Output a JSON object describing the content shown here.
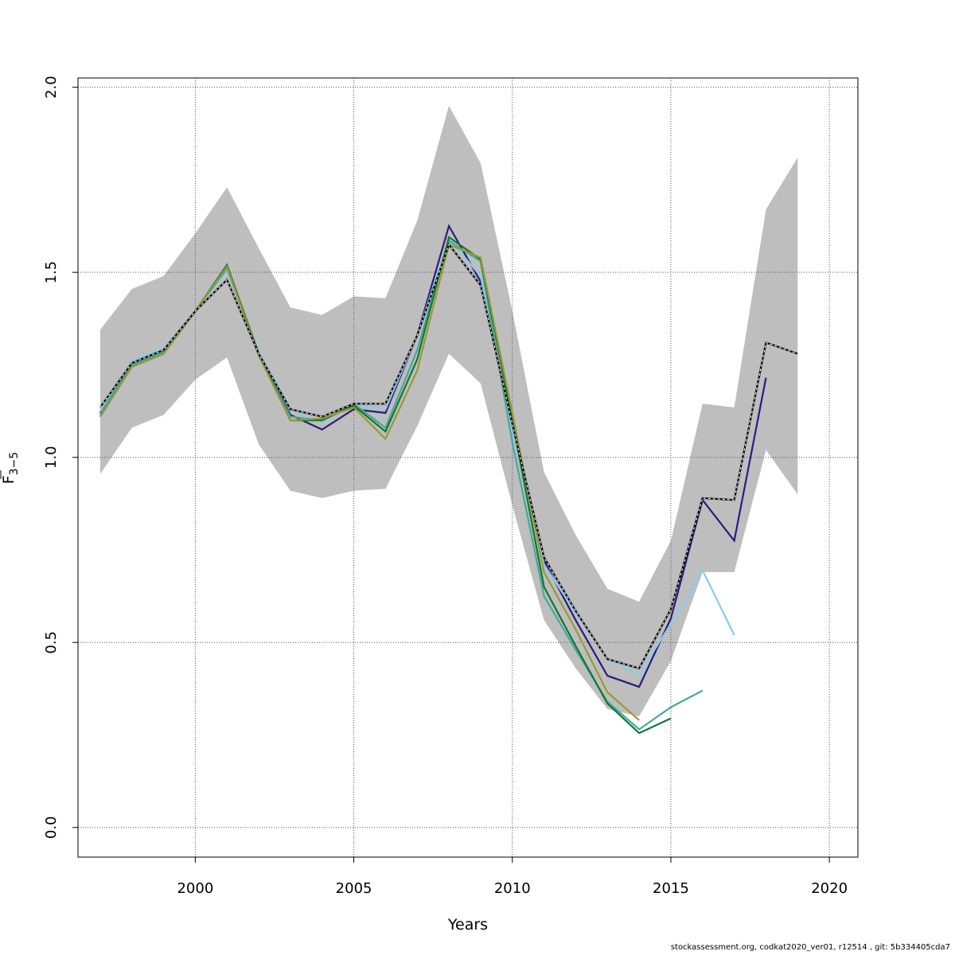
{
  "chart_data": {
    "type": "line",
    "xlabel": "Years",
    "ylabel_main": "F",
    "ylabel_sub": "3−5",
    "xlim": [
      1996.3,
      2020.9
    ],
    "ylim": [
      -0.08,
      2.025
    ],
    "x_ticks": [
      2000,
      2005,
      2010,
      2015,
      2020
    ],
    "y_ticks": [
      0.0,
      0.5,
      1.0,
      1.5,
      2.0
    ],
    "y_tick_labels": [
      "0.0",
      "0.5",
      "1.0",
      "1.5",
      "2.0"
    ],
    "grid": true,
    "confidence_band": {
      "x": [
        1997,
        1998,
        1999,
        2000,
        2001,
        2002,
        2003,
        2004,
        2005,
        2006,
        2007,
        2008,
        2009,
        2010,
        2011,
        2012,
        2013,
        2014,
        2015,
        2016,
        2017,
        2018,
        2019
      ],
      "lower": [
        0.955,
        1.08,
        1.115,
        1.21,
        1.27,
        1.035,
        0.91,
        0.89,
        0.91,
        0.915,
        1.085,
        1.28,
        1.2,
        0.87,
        0.56,
        0.43,
        0.32,
        0.3,
        0.45,
        0.69,
        0.69,
        1.02,
        0.9
      ],
      "upper": [
        1.345,
        1.455,
        1.49,
        1.605,
        1.73,
        1.565,
        1.405,
        1.385,
        1.435,
        1.43,
        1.64,
        1.95,
        1.795,
        1.395,
        0.96,
        0.79,
        0.645,
        0.61,
        0.775,
        1.145,
        1.135,
        1.67,
        1.81
      ],
      "color": "#bebebe"
    },
    "series": [
      {
        "style": "main",
        "color": "#000000",
        "x": [
          1997,
          1998,
          1999,
          2000,
          2001,
          2002,
          2003,
          2004,
          2005,
          2006,
          2007,
          2008,
          2009,
          2010,
          2011,
          2012,
          2013,
          2014,
          2015,
          2016,
          2017,
          2018,
          2019
        ],
        "values": [
          1.135,
          1.255,
          1.29,
          1.395,
          1.48,
          1.28,
          1.13,
          1.11,
          1.145,
          1.145,
          1.33,
          1.575,
          1.465,
          1.09,
          0.73,
          0.585,
          0.455,
          0.43,
          0.59,
          0.89,
          0.885,
          1.31,
          1.28
        ]
      },
      {
        "color": "#2c1b7c",
        "x": [
          1997,
          1998,
          1999,
          2000,
          2001,
          2002,
          2003,
          2004,
          2005,
          2006,
          2007,
          2008,
          2009,
          2010,
          2011,
          2012,
          2013,
          2014,
          2015,
          2016,
          2017,
          2018
        ],
        "values": [
          1.12,
          1.25,
          1.285,
          1.395,
          1.515,
          1.28,
          1.115,
          1.075,
          1.13,
          1.12,
          1.33,
          1.625,
          1.475,
          1.08,
          0.72,
          0.56,
          0.41,
          0.38,
          0.565,
          0.885,
          0.775,
          1.215
        ]
      },
      {
        "color": "#88ccee",
        "x": [
          1997,
          1998,
          1999,
          2000,
          2001,
          2002,
          2003,
          2004,
          2005,
          2006,
          2007,
          2008,
          2009,
          2010,
          2011,
          2012,
          2013,
          2014,
          2015,
          2016,
          2017
        ],
        "values": [
          1.125,
          1.26,
          1.295,
          1.395,
          1.505,
          1.285,
          1.13,
          1.095,
          1.145,
          1.13,
          1.33,
          1.59,
          1.49,
          1.07,
          0.71,
          0.58,
          0.455,
          0.415,
          0.55,
          0.695,
          0.52
        ]
      },
      {
        "color": "#44aa99",
        "x": [
          1997,
          1998,
          1999,
          2000,
          2001,
          2002,
          2003,
          2004,
          2005,
          2006,
          2007,
          2008,
          2009,
          2010,
          2011,
          2012,
          2013,
          2014,
          2015,
          2016
        ],
        "values": [
          1.115,
          1.25,
          1.285,
          1.395,
          1.51,
          1.28,
          1.11,
          1.1,
          1.145,
          1.08,
          1.29,
          1.585,
          1.53,
          1.04,
          0.625,
          0.48,
          0.34,
          0.265,
          0.325,
          0.37
        ]
      },
      {
        "color": "#117733",
        "x": [
          1997,
          1998,
          1999,
          2000,
          2001,
          2002,
          2003,
          2004,
          2005,
          2006,
          2007,
          2008,
          2009,
          2010,
          2011,
          2012,
          2013,
          2014,
          2015
        ],
        "values": [
          1.11,
          1.245,
          1.28,
          1.395,
          1.52,
          1.28,
          1.1,
          1.1,
          1.14,
          1.07,
          1.265,
          1.595,
          1.535,
          1.1,
          0.65,
          0.49,
          0.335,
          0.255,
          0.295
        ]
      },
      {
        "color": "#999933",
        "x": [
          1997,
          1998,
          1999,
          2000,
          2001,
          2002,
          2003,
          2004,
          2005,
          2006,
          2007,
          2008,
          2009,
          2010,
          2011,
          2012,
          2013,
          2014
        ],
        "values": [
          1.11,
          1.245,
          1.28,
          1.395,
          1.515,
          1.275,
          1.1,
          1.105,
          1.135,
          1.05,
          1.235,
          1.575,
          1.54,
          1.12,
          0.69,
          0.535,
          0.365,
          0.29
        ]
      }
    ]
  },
  "footer": "stockassessment.org, codkat2020_ver01, r12514 , git: 5b334405cda7"
}
